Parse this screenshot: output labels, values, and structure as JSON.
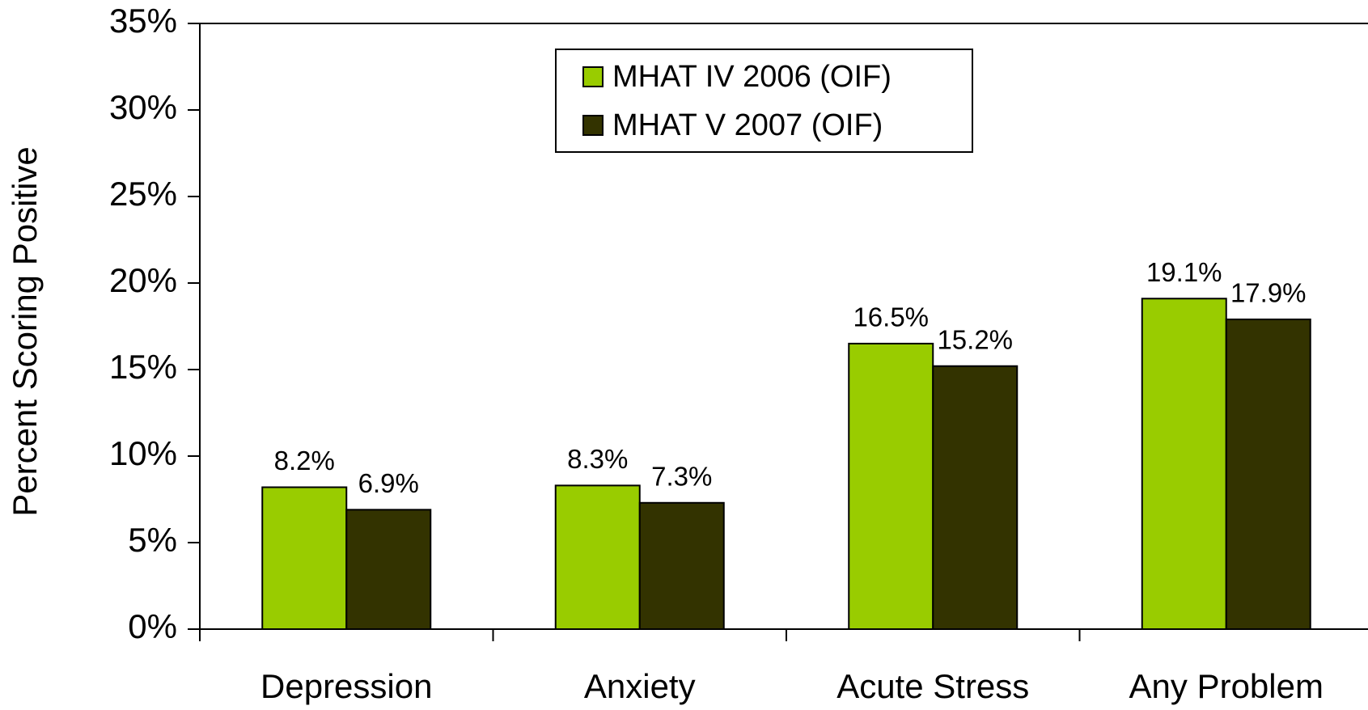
{
  "chart_data": {
    "type": "bar",
    "y_label": "Percent Scoring Positive",
    "categories": [
      "Depression",
      "Anxiety",
      "Acute Stress",
      "Any Problem"
    ],
    "series": [
      {
        "name": "MHAT IV 2006 (OIF)",
        "color": "#99cc00",
        "values": [
          8.2,
          8.3,
          16.5,
          19.1
        ],
        "value_labels": [
          "8.2%",
          "8.3%",
          "16.5%",
          "19.1%"
        ]
      },
      {
        "name": "MHAT V 2007 (OIF)",
        "color": "#333300",
        "values": [
          6.9,
          7.3,
          15.2,
          17.9
        ],
        "value_labels": [
          "6.9%",
          "7.3%",
          "15.2%",
          "17.9%"
        ]
      }
    ],
    "ylim": [
      0,
      35
    ],
    "yticks": [
      {
        "value": 0,
        "label": "0%"
      },
      {
        "value": 5,
        "label": "5%"
      },
      {
        "value": 10,
        "label": "10%"
      },
      {
        "value": 15,
        "label": "15%"
      },
      {
        "value": 20,
        "label": "20%"
      },
      {
        "value": 25,
        "label": "25%"
      },
      {
        "value": 30,
        "label": "30%"
      },
      {
        "value": 35,
        "label": "35%"
      }
    ],
    "grid": false,
    "legend": "top"
  }
}
